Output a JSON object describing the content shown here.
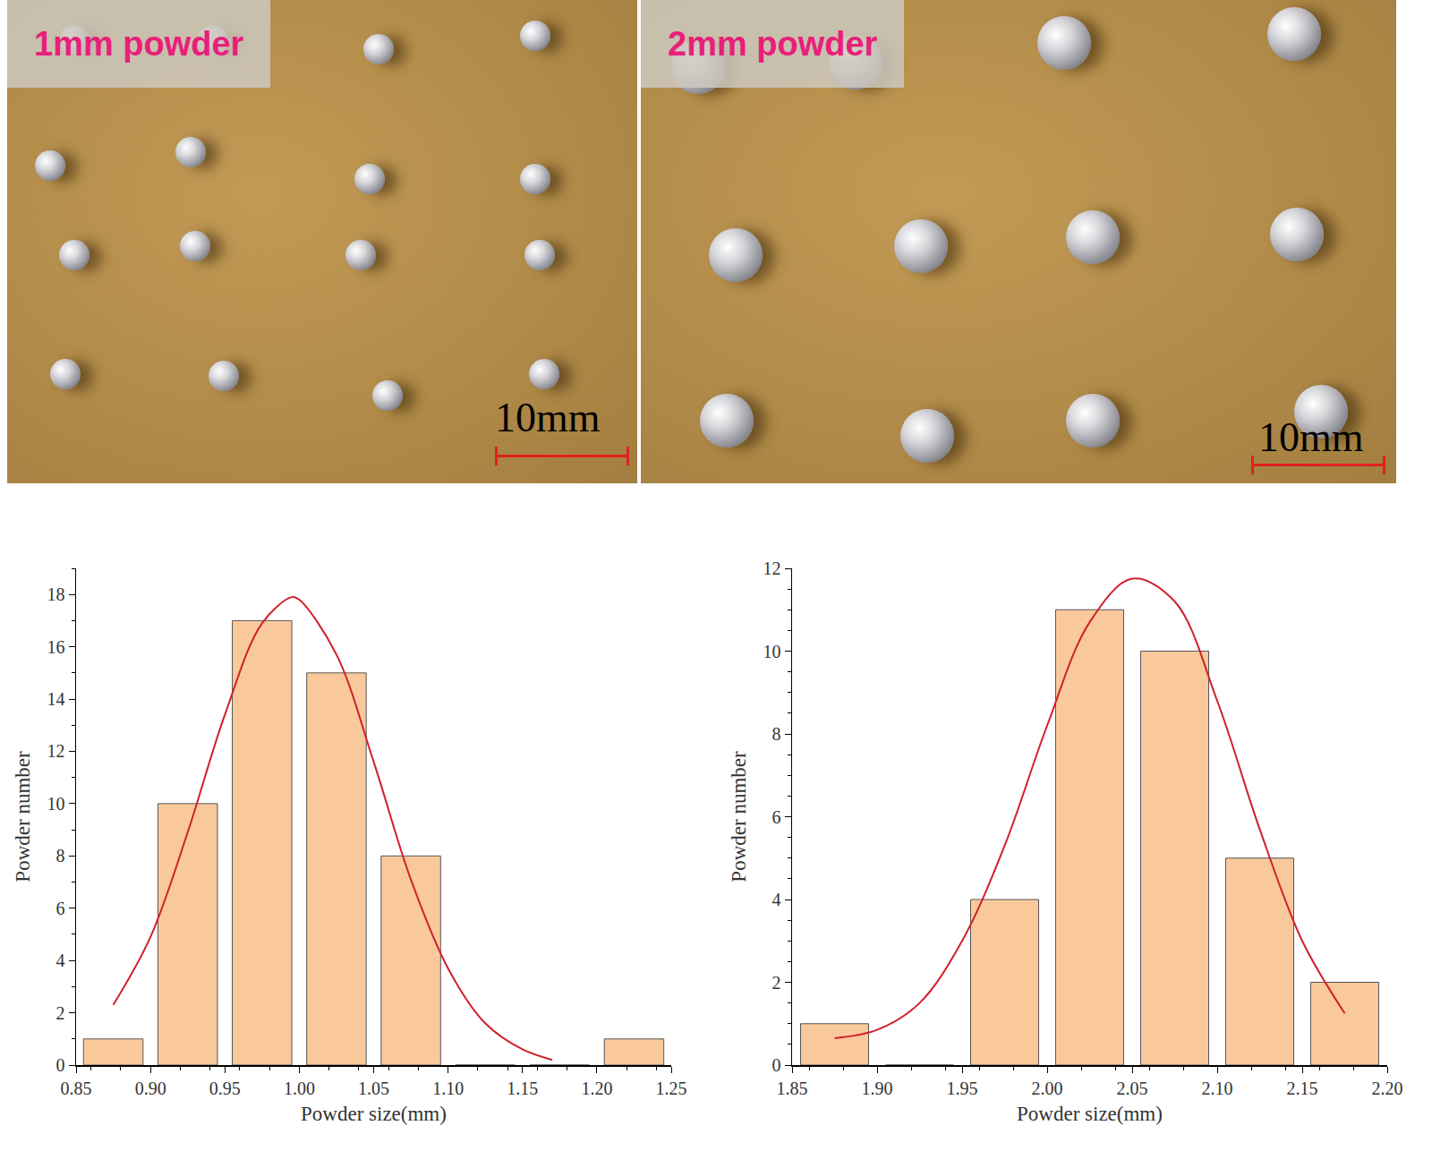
{
  "panels": [
    {
      "label": "1mm powder",
      "scale_bar": "10mm"
    },
    {
      "label": "2mm powder",
      "scale_bar": "10mm"
    }
  ],
  "chart_data": [
    {
      "type": "bar",
      "x_label": "Powder size(mm)",
      "y_label": "Powder number",
      "bins": [
        0.85,
        0.9,
        0.95,
        1.0,
        1.05,
        1.1,
        1.15,
        1.2,
        1.25
      ],
      "values": [
        1,
        10,
        17,
        15,
        8,
        0,
        0,
        1
      ],
      "color": "#f9c99b",
      "xlim": [
        0.85,
        1.25
      ],
      "xticks": [
        0.85,
        {
          "value": 0.9,
          "label": "0.90"
        },
        0.95,
        {
          "value": 1.0,
          "label": "1.00"
        },
        1.05,
        {
          "value": 1.1,
          "label": "1.10"
        },
        1.15,
        {
          "value": 1.2,
          "label": "1.20"
        },
        1.25
      ],
      "ylim": [
        0,
        19
      ],
      "yticks": [
        0,
        2,
        4,
        6,
        8,
        10,
        12,
        14,
        16,
        18
      ],
      "grid": false,
      "curve": {
        "x": [
          0.875,
          0.9,
          0.925,
          0.95,
          0.975,
          0.995,
          1.0,
          1.025,
          1.05,
          1.075,
          1.1,
          1.125,
          1.15,
          1.17
        ],
        "values": [
          2.3,
          4.9,
          8.9,
          13.4,
          16.9,
          17.9,
          17.8,
          15.7,
          11.6,
          7.1,
          3.7,
          1.6,
          0.6,
          0.2
        ],
        "color": "#d0202a",
        "line_style": "solid"
      }
    },
    {
      "type": "bar",
      "x_label": "Powder size(mm)",
      "y_label": "Powder number",
      "bins": [
        1.85,
        1.9,
        1.95,
        2.0,
        2.05,
        2.1,
        2.15,
        2.2
      ],
      "values": [
        1,
        0,
        4,
        11,
        10,
        5,
        2
      ],
      "color": "#f9c99b",
      "xlim": [
        1.85,
        2.2
      ],
      "xticks": [
        1.85,
        {
          "value": 1.9,
          "label": "1.90"
        },
        1.95,
        {
          "value": 2.0,
          "label": "2.00"
        },
        2.05,
        {
          "value": 2.1,
          "label": "2.10"
        },
        2.15,
        {
          "value": 2.2,
          "label": "2.20"
        }
      ],
      "ylim": [
        0,
        12
      ],
      "yticks": [
        0,
        2,
        4,
        6,
        8,
        10,
        12
      ],
      "grid": false,
      "curve": {
        "x": [
          1.875,
          1.9,
          1.925,
          1.95,
          1.975,
          2.0,
          2.025,
          2.05,
          2.075,
          2.1,
          2.125,
          2.15,
          2.175
        ],
        "values": [
          0.65,
          0.85,
          1.5,
          3.0,
          5.3,
          8.2,
          10.7,
          11.75,
          11.2,
          8.8,
          5.7,
          3.0,
          1.25
        ],
        "color": "#d0202a",
        "line_style": "solid"
      }
    }
  ]
}
